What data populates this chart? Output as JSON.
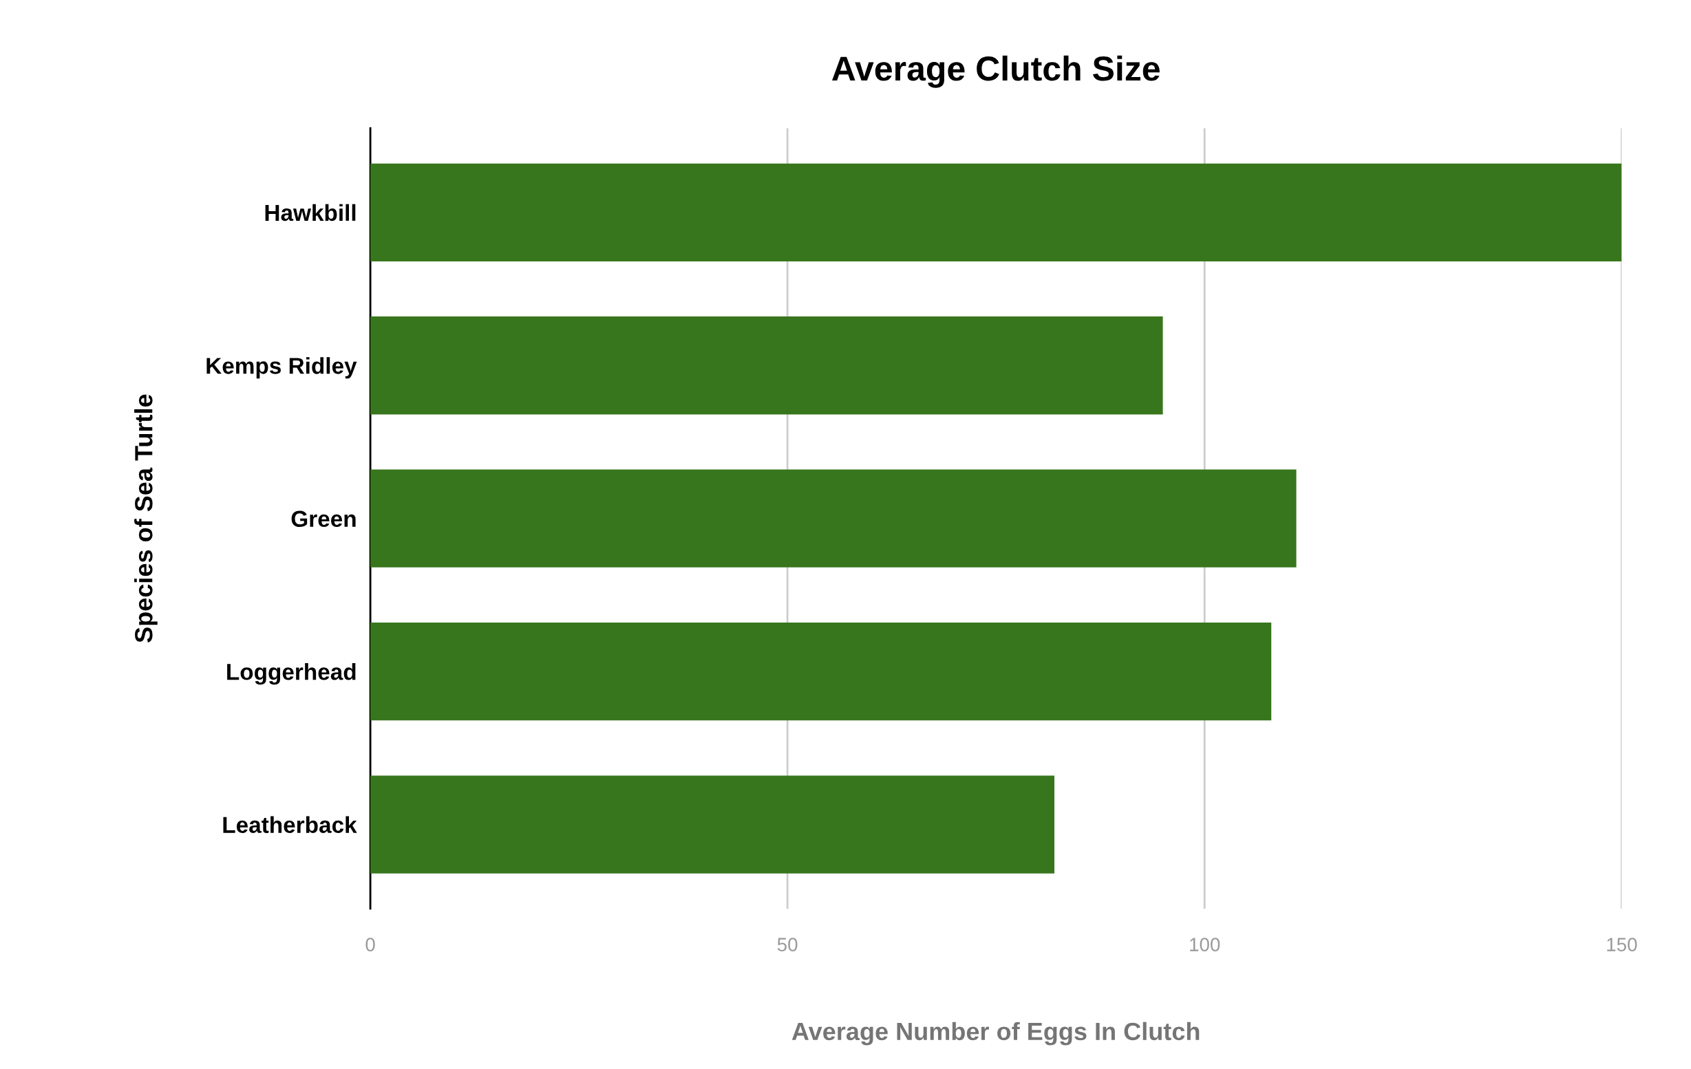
{
  "chart_data": {
    "type": "bar",
    "orientation": "horizontal",
    "title": "Average Clutch Size",
    "xlabel": "Average Number of Eggs In Clutch",
    "ylabel": "Species of Sea Turtle",
    "categories": [
      "Hawkbill",
      "Kemps Ridley",
      "Green",
      "Loggerhead",
      "Leatherback"
    ],
    "values": [
      150,
      95,
      111,
      108,
      82
    ],
    "color": "#38761d",
    "xlim": [
      0,
      150
    ],
    "xticks": [
      0,
      50,
      100,
      150
    ],
    "grid": "x",
    "legend": false
  }
}
